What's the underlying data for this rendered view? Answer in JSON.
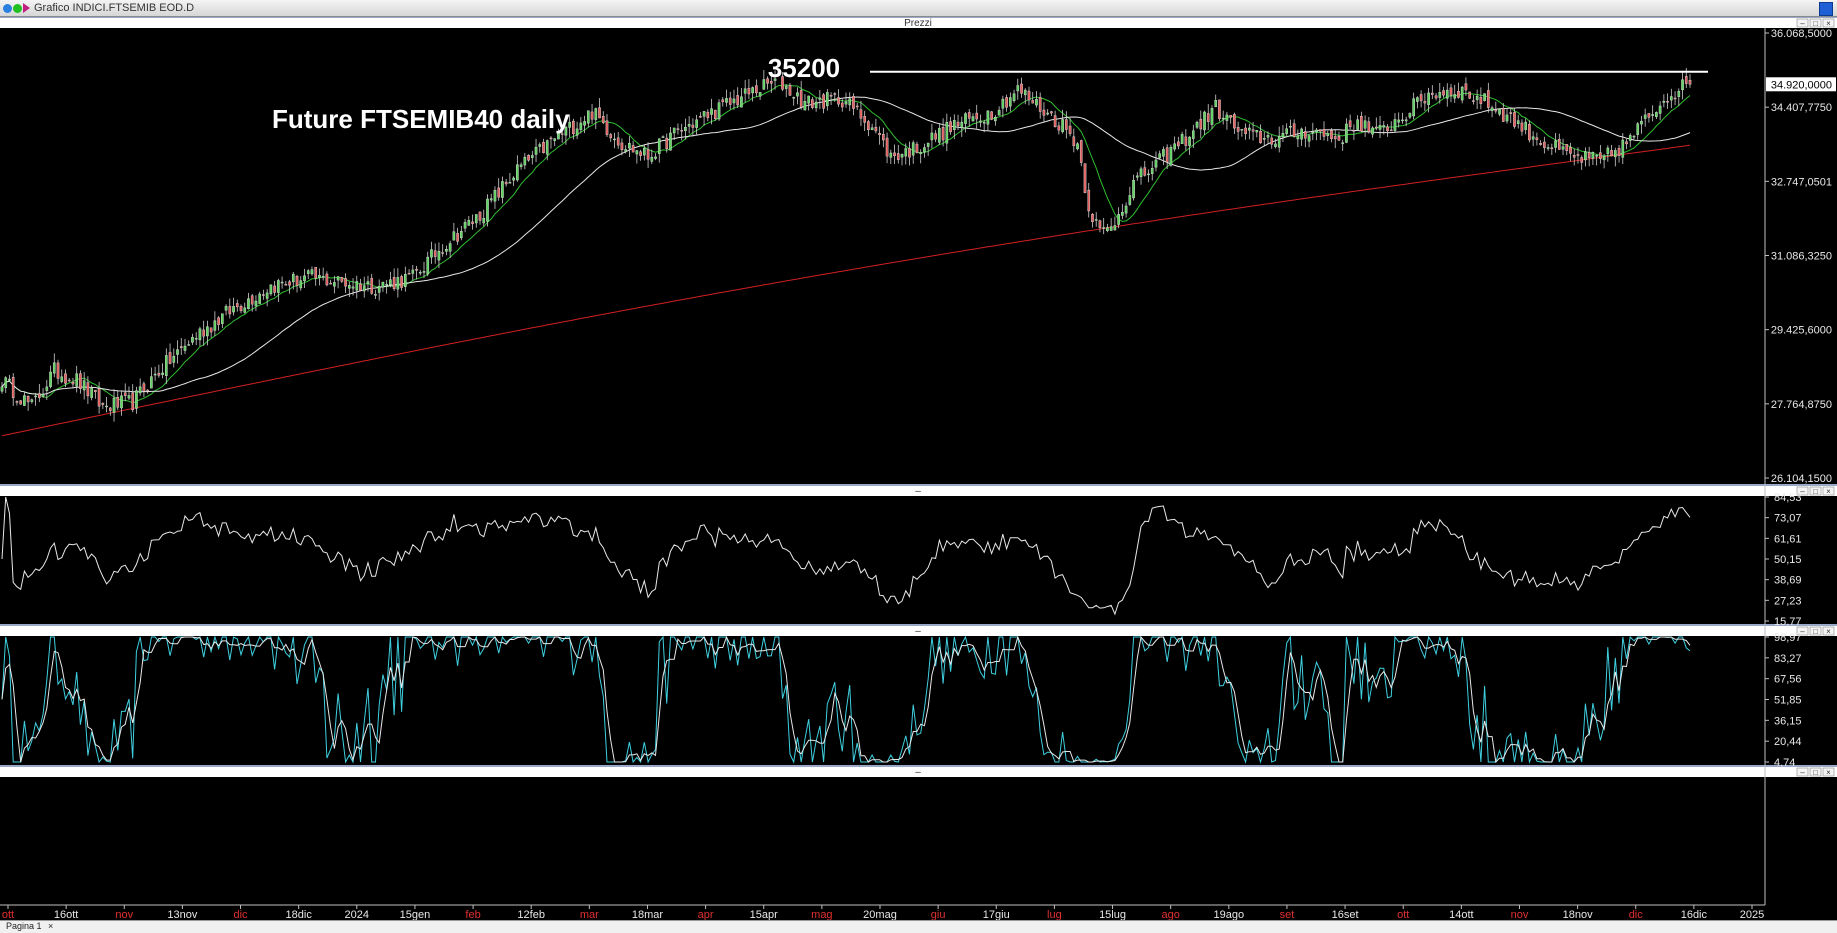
{
  "window": {
    "title": "Grafico INDICI.FTSEMIB EOD.D",
    "tab_label": "Pagina 1",
    "tab_close": "×",
    "panel_title": "Prezzi",
    "panel_separator": "–",
    "controls": [
      "–",
      "□",
      "×"
    ],
    "colors": {
      "titlebar": "#e8e8e8",
      "panel_header": "#ffffff",
      "ctl_button": "#1f5fd6"
    }
  },
  "chart_data": [
    {
      "type": "candlestick",
      "title": "Future FTSEMIB40 daily",
      "annotation": {
        "text": "35200",
        "level": 35200
      },
      "ylim": [
        26104.15,
        36068.5
      ],
      "y_ticks": [
        "36.068,5000",
        "34.407,7750",
        "32.747,0501",
        "31.086,3250",
        "29.425,6000",
        "27.764,8750",
        "26.104,1500"
      ],
      "y_tick_values": [
        36068.5,
        34407.775,
        32747.0501,
        31086.325,
        29425.6,
        27764.875,
        26104.15
      ],
      "last_price_label": "34.920,0000",
      "last_price": 34920,
      "x_labels": [
        {
          "text": "ott",
          "red": true
        },
        {
          "text": "16ott",
          "red": false
        },
        {
          "text": "nov",
          "red": true
        },
        {
          "text": "13nov",
          "red": false
        },
        {
          "text": "dic",
          "red": true
        },
        {
          "text": "18dic",
          "red": false
        },
        {
          "text": "2024",
          "red": false
        },
        {
          "text": "15gen",
          "red": false
        },
        {
          "text": "feb",
          "red": true
        },
        {
          "text": "12feb",
          "red": false
        },
        {
          "text": "mar",
          "red": true
        },
        {
          "text": "18mar",
          "red": false
        },
        {
          "text": "apr",
          "red": true
        },
        {
          "text": "15apr",
          "red": false
        },
        {
          "text": "mag",
          "red": true
        },
        {
          "text": "20mag",
          "red": false
        },
        {
          "text": "giu",
          "red": true
        },
        {
          "text": "17giu",
          "red": false
        },
        {
          "text": "lug",
          "red": true
        },
        {
          "text": "15lug",
          "red": false
        },
        {
          "text": "ago",
          "red": true
        },
        {
          "text": "19ago",
          "red": false
        },
        {
          "text": "set",
          "red": true
        },
        {
          "text": "16set",
          "red": false
        },
        {
          "text": "ott",
          "red": true
        },
        {
          "text": "14ott",
          "red": false
        },
        {
          "text": "nov",
          "red": true
        },
        {
          "text": "18nov",
          "red": false
        },
        {
          "text": "dic",
          "red": true
        },
        {
          "text": "16dic",
          "red": false
        },
        {
          "text": "2025",
          "red": false
        }
      ],
      "close_anchors": [
        [
          0,
          28300
        ],
        [
          8,
          27700
        ],
        [
          14,
          28500
        ],
        [
          20,
          28300
        ],
        [
          27,
          27700
        ],
        [
          35,
          27800
        ],
        [
          42,
          28500
        ],
        [
          52,
          29300
        ],
        [
          62,
          29900
        ],
        [
          72,
          30400
        ],
        [
          82,
          30600
        ],
        [
          90,
          30500
        ],
        [
          100,
          30400
        ],
        [
          110,
          30600
        ],
        [
          118,
          31300
        ],
        [
          128,
          32000
        ],
        [
          138,
          33000
        ],
        [
          148,
          33700
        ],
        [
          158,
          34300
        ],
        [
          166,
          33600
        ],
        [
          173,
          33300
        ],
        [
          180,
          33800
        ],
        [
          188,
          34200
        ],
        [
          195,
          34500
        ],
        [
          202,
          34800
        ],
        [
          208,
          35000
        ],
        [
          215,
          34500
        ],
        [
          225,
          34600
        ],
        [
          233,
          34000
        ],
        [
          238,
          33300
        ],
        [
          245,
          33500
        ],
        [
          255,
          34000
        ],
        [
          265,
          34300
        ],
        [
          272,
          34800
        ],
        [
          278,
          34400
        ],
        [
          284,
          34000
        ],
        [
          288,
          33600
        ],
        [
          291,
          32200
        ],
        [
          294,
          31600
        ],
        [
          297,
          31700
        ],
        [
          303,
          32700
        ],
        [
          310,
          33200
        ],
        [
          318,
          33800
        ],
        [
          325,
          34400
        ],
        [
          332,
          33800
        ],
        [
          340,
          33700
        ],
        [
          350,
          33900
        ],
        [
          358,
          33700
        ],
        [
          363,
          34100
        ],
        [
          368,
          33800
        ],
        [
          375,
          34200
        ],
        [
          382,
          34700
        ],
        [
          390,
          34800
        ],
        [
          398,
          34500
        ],
        [
          405,
          34100
        ],
        [
          413,
          33600
        ],
        [
          420,
          33300
        ],
        [
          428,
          33200
        ],
        [
          435,
          33600
        ],
        [
          440,
          34100
        ],
        [
          446,
          34700
        ],
        [
          452,
          34920
        ]
      ],
      "moving_averages": [
        {
          "name": "MA short",
          "color": "#2fbf2f",
          "period": 10
        },
        {
          "name": "MA medium",
          "color": "#e8e8e8",
          "period": 40
        },
        {
          "name": "MA long",
          "color": "#d02020",
          "period": 200
        }
      ],
      "up_color": "#5fd25f",
      "down_color": "#e06060"
    },
    {
      "type": "line",
      "name": "oscillator-1",
      "ylim": [
        15.77,
        84.53
      ],
      "y_ticks": [
        "84,53",
        "73,07",
        "61,61",
        "50,15",
        "38,69",
        "27,23",
        "15,77"
      ],
      "y_tick_values": [
        84.53,
        73.07,
        61.61,
        50.15,
        38.69,
        27.23,
        15.77
      ],
      "color": "#e8e8e8"
    },
    {
      "type": "line",
      "name": "stochastic",
      "ylim": [
        4.74,
        98.97
      ],
      "y_ticks": [
        "98,97",
        "83,27",
        "67,56",
        "51,85",
        "36,15",
        "20,44",
        "4,74"
      ],
      "y_tick_values": [
        98.97,
        83.27,
        67.56,
        51.85,
        36.15,
        20.44,
        4.74
      ],
      "series_colors": [
        "#3fd0e0",
        "#e8e8e8"
      ]
    }
  ]
}
